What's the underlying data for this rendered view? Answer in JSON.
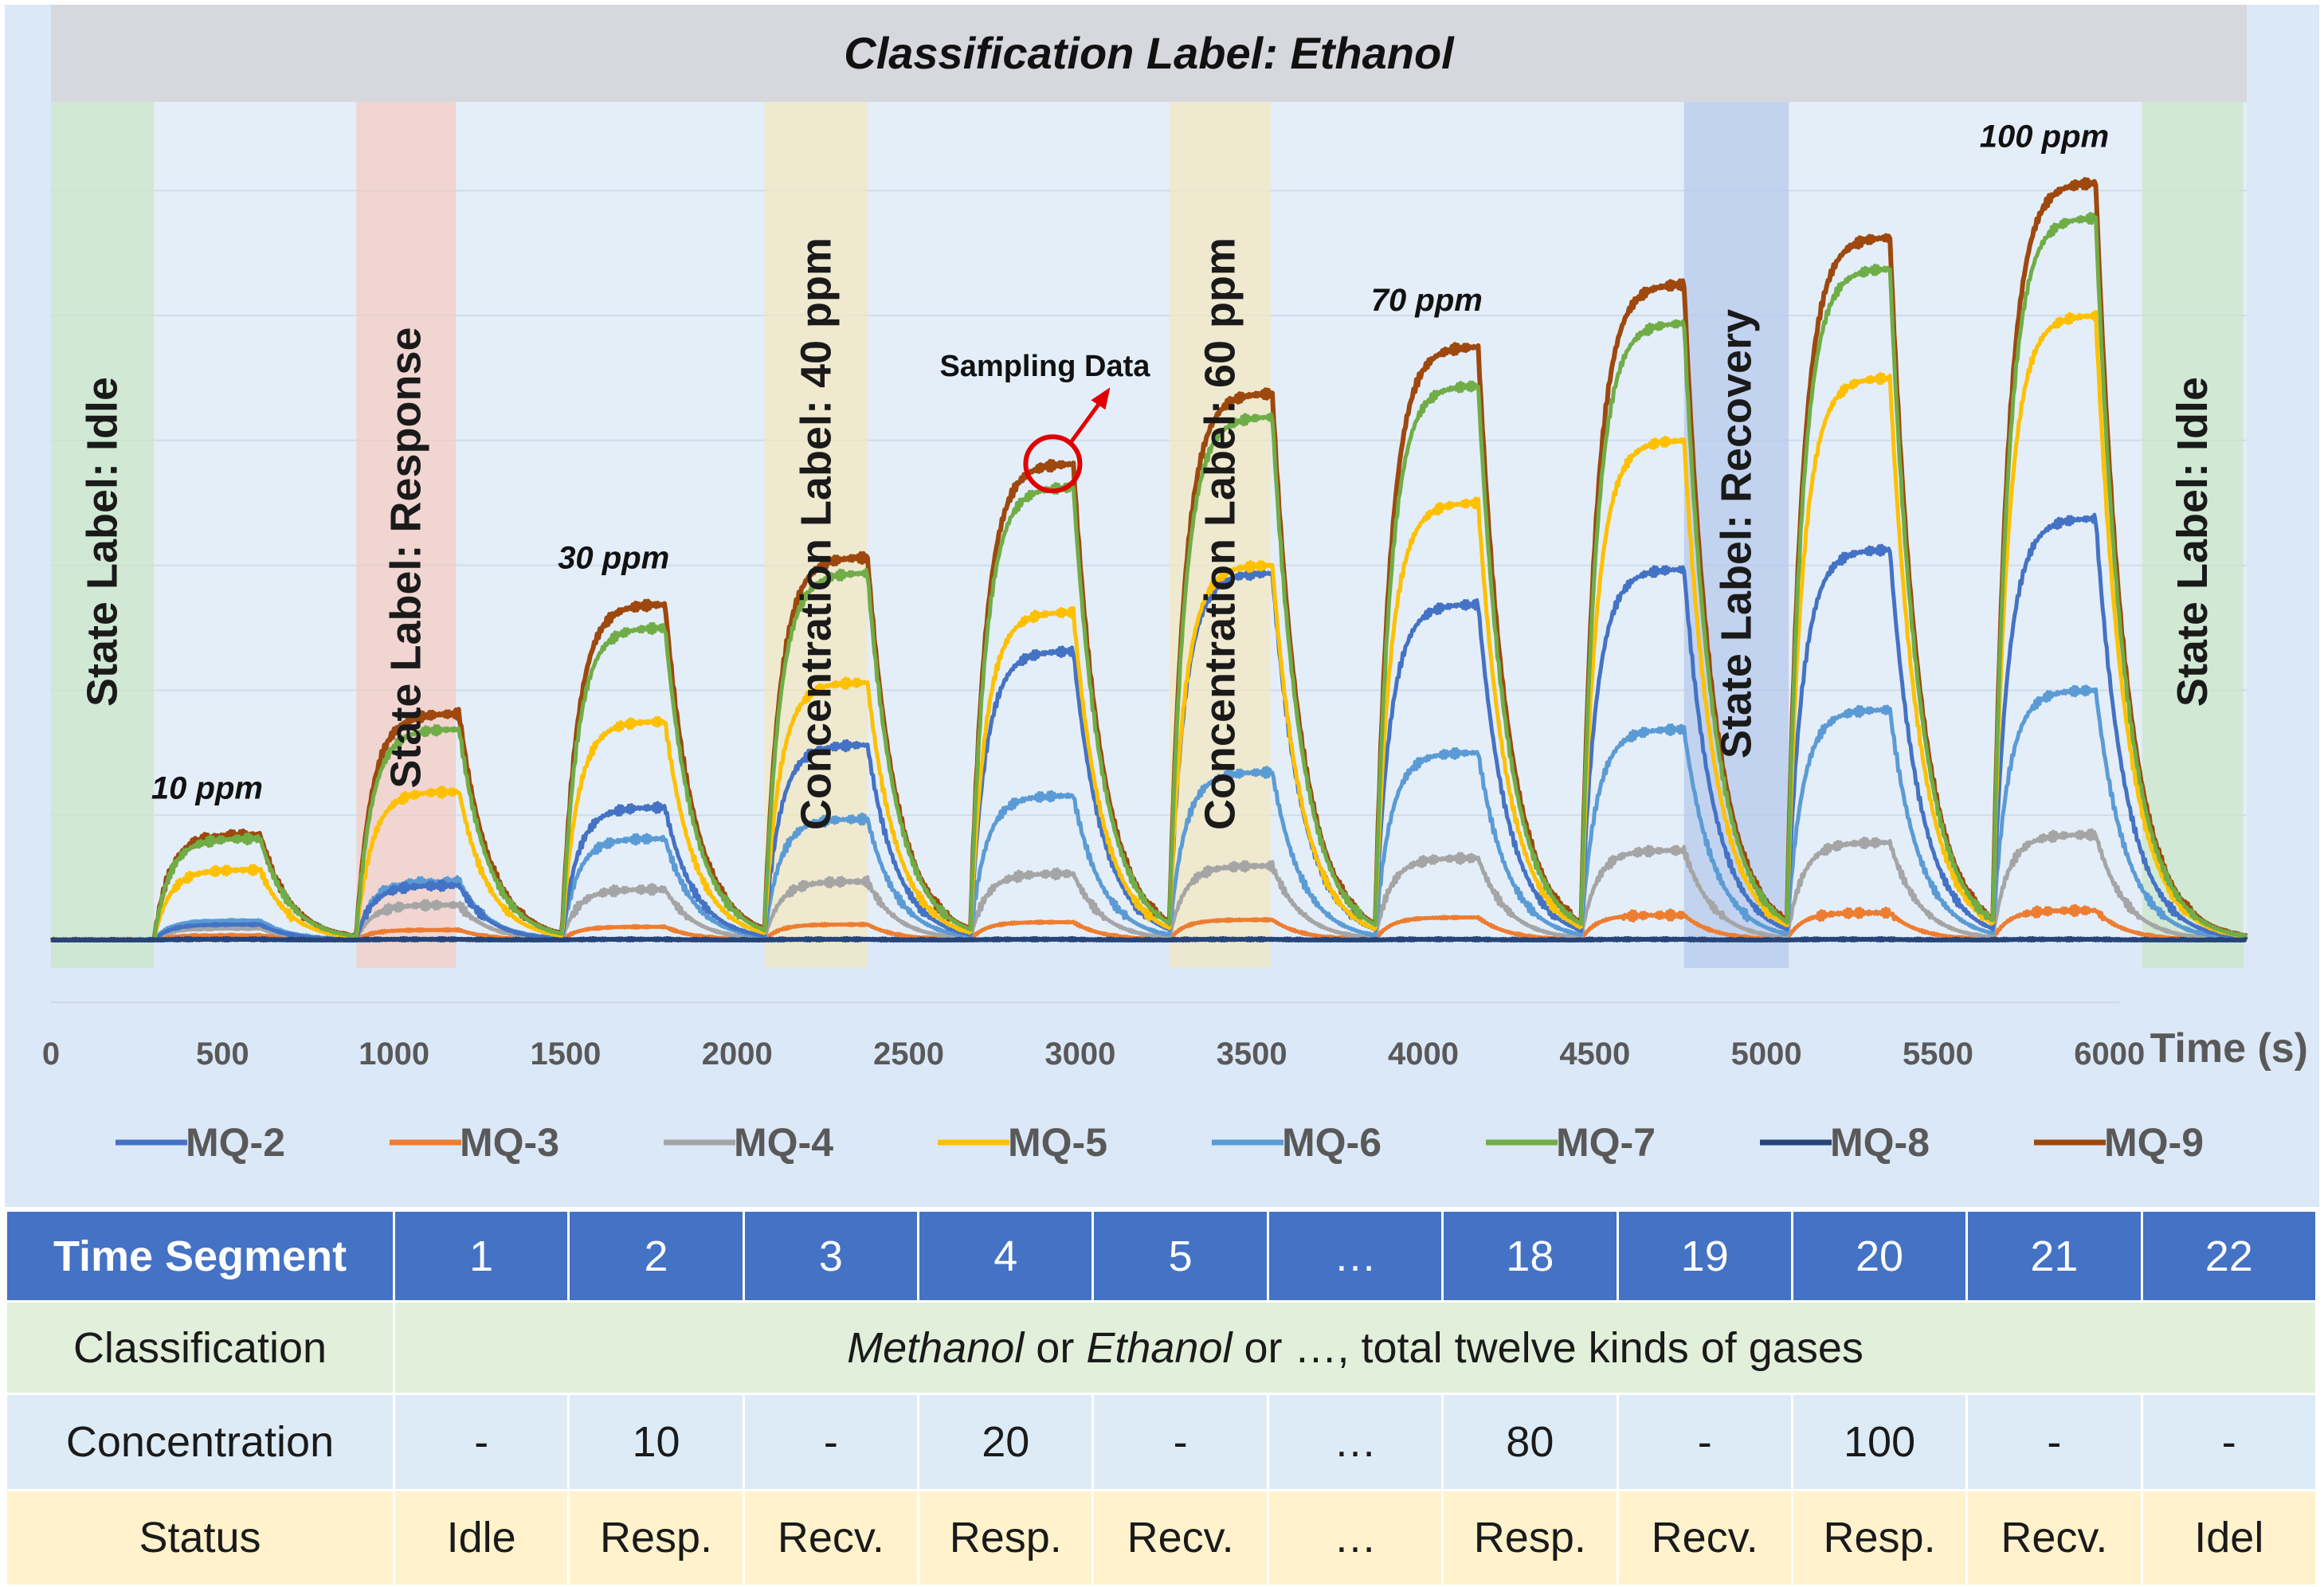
{
  "chart_data": {
    "type": "line",
    "title": "Classification  Label: Ethanol",
    "xlabel": "Time (s)",
    "ylabel": "",
    "xlim": [
      0,
      6400
    ],
    "ylim": [
      0,
      100
    ],
    "x_ticks": [
      0,
      500,
      1000,
      1500,
      2000,
      2500,
      3000,
      3500,
      4000,
      4500,
      5000,
      5500,
      6000
    ],
    "legend_position": "bottom",
    "pulses": [
      {
        "start": 300,
        "end": 610,
        "label": "10 ppm"
      },
      {
        "start": 890,
        "end": 1190,
        "label": ""
      },
      {
        "start": 1490,
        "end": 1790,
        "label": "30 ppm"
      },
      {
        "start": 2080,
        "end": 2380,
        "label": ""
      },
      {
        "start": 2680,
        "end": 2980,
        "label": ""
      },
      {
        "start": 3260,
        "end": 3560,
        "label": ""
      },
      {
        "start": 3860,
        "end": 4160,
        "label": "70 ppm"
      },
      {
        "start": 4460,
        "end": 4760,
        "label": ""
      },
      {
        "start": 5060,
        "end": 5360,
        "label": ""
      },
      {
        "start": 5660,
        "end": 5960,
        "label": "100 ppm"
      }
    ],
    "series": [
      {
        "name": "MQ-2",
        "color": "#4472c4",
        "plateaus": [
          2.0,
          7.0,
          17.0,
          25.0,
          37.0,
          47.0,
          43.0,
          47.5,
          50.0,
          54.0
        ]
      },
      {
        "name": "MQ-3",
        "color": "#ed7d31",
        "plateaus": [
          0.6,
          1.3,
          1.7,
          2.0,
          2.3,
          2.6,
          2.9,
          3.2,
          3.5,
          3.8
        ]
      },
      {
        "name": "MQ-4",
        "color": "#a5a5a5",
        "plateaus": [
          1.5,
          4.5,
          6.5,
          7.5,
          8.5,
          9.5,
          10.5,
          11.5,
          12.5,
          13.5
        ]
      },
      {
        "name": "MQ-5",
        "color": "#ffc000",
        "plateaus": [
          9.0,
          19.0,
          28.0,
          33.0,
          42.0,
          48.0,
          56.0,
          64.0,
          72.0,
          80.0
        ]
      },
      {
        "name": "MQ-6",
        "color": "#5b9bd5",
        "plateaus": [
          2.5,
          7.5,
          13.0,
          15.5,
          18.5,
          21.5,
          24.0,
          27.0,
          29.5,
          32.0
        ]
      },
      {
        "name": "MQ-7",
        "color": "#70ad47",
        "plateaus": [
          13.0,
          27.0,
          40.0,
          47.0,
          58.0,
          67.0,
          71.0,
          79.0,
          86.0,
          92.5
        ]
      },
      {
        "name": "MQ-8",
        "color": "#264478",
        "plateaus": [
          0.1,
          0.1,
          0.1,
          0.1,
          0.1,
          0.1,
          0.1,
          0.1,
          0.1,
          0.1
        ]
      },
      {
        "name": "MQ-9",
        "color": "#9e480e",
        "plateaus": [
          13.5,
          29.0,
          43.0,
          49.0,
          61.0,
          70.0,
          76.0,
          84.0,
          90.0,
          97.0
        ]
      }
    ],
    "state_bands": [
      {
        "x0": 0,
        "x1": 300,
        "color": "#c9e6c6",
        "label": "State Label: Idle"
      },
      {
        "x0": 890,
        "x1": 1180,
        "color": "#f4ccc0",
        "label": "State Label: Response"
      },
      {
        "x0": 2080,
        "x1": 2380,
        "color": "#f3e7bf",
        "label": "Concentration Label: 40 ppm"
      },
      {
        "x0": 3260,
        "x1": 3555,
        "color": "#f3e7bf",
        "label": "Concentration Label: 60 ppm"
      },
      {
        "x0": 4760,
        "x1": 5065,
        "color": "#b4c9ec",
        "label": "State Label: Recovery"
      },
      {
        "x0": 6095,
        "x1": 6390,
        "color": "#c9e6c6",
        "label": "State Label: Idle"
      }
    ],
    "annotation": {
      "text": "Sampling Data",
      "x": 2920,
      "y": 61
    }
  },
  "legend": [
    "MQ-2",
    "MQ-3",
    "MQ-4",
    "MQ-5",
    "MQ-6",
    "MQ-7",
    "MQ-8",
    "MQ-9"
  ],
  "table": {
    "header_label": "Time Segment",
    "segments": [
      "1",
      "2",
      "3",
      "4",
      "5",
      "…",
      "18",
      "19",
      "20",
      "21",
      "22"
    ],
    "classification_label": "Classification",
    "classification": {
      "gas1": "Methanol",
      "or1": " or ",
      "gas2": "Ethanol",
      "rest": " or …, total twelve kinds of gases"
    },
    "concentration_label": "Concentration",
    "concentration": [
      "-",
      "10",
      "-",
      "20",
      "-",
      "…",
      "80",
      "-",
      "100",
      "-",
      "-"
    ],
    "status_label": "Status",
    "status": [
      "Idle",
      "Resp.",
      "Recv.",
      "Resp.",
      "Recv.",
      "…",
      "Resp.",
      "Recv.",
      "Resp.",
      "Recv.",
      "Idel"
    ]
  }
}
